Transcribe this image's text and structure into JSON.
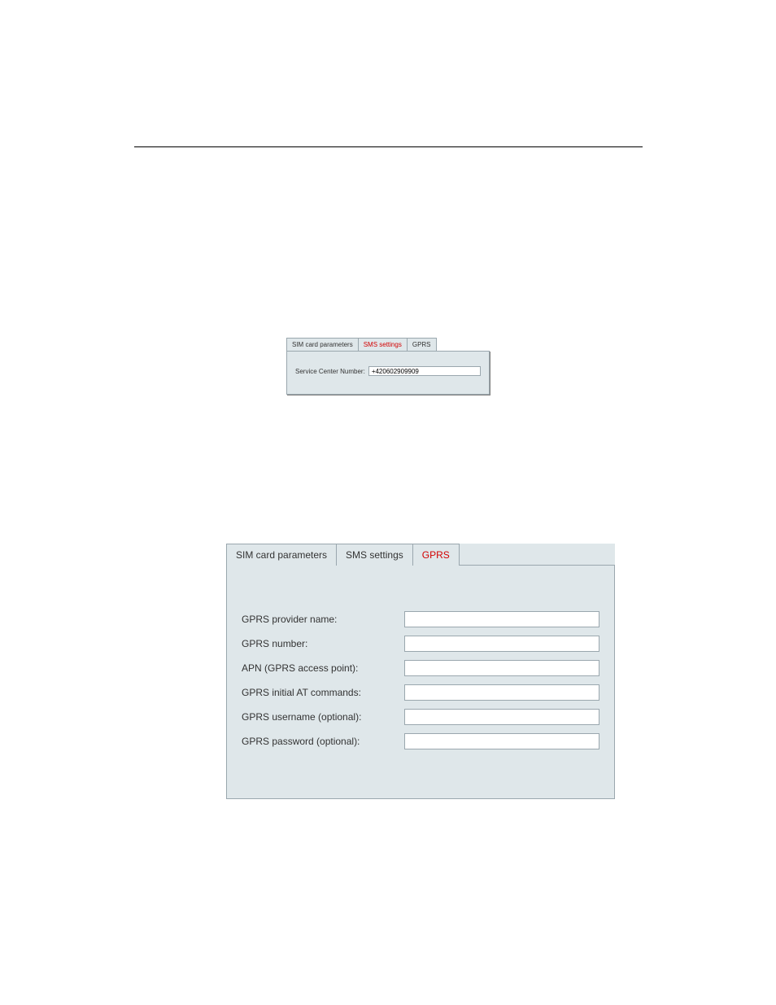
{
  "sms_panel": {
    "tabs": [
      {
        "label": "SIM card parameters",
        "active": false
      },
      {
        "label": "SMS settings",
        "active": true
      },
      {
        "label": "GPRS",
        "active": false
      }
    ],
    "field_label": "Service Center Number:",
    "field_value": "+420602909909"
  },
  "gprs_panel": {
    "tabs": [
      {
        "label": "SIM card parameters",
        "active": false
      },
      {
        "label": "SMS settings",
        "active": false
      },
      {
        "label": "GPRS",
        "active": true
      }
    ],
    "rows": [
      {
        "label": "GPRS provider name:",
        "value": ""
      },
      {
        "label": "GPRS number:",
        "value": ""
      },
      {
        "label": "APN (GPRS access point):",
        "value": ""
      },
      {
        "label": "GPRS initial AT commands:",
        "value": ""
      },
      {
        "label": "GPRS username (optional):",
        "value": ""
      },
      {
        "label": "GPRS password (optional):",
        "value": ""
      }
    ]
  },
  "colors": {
    "panel_bg": "#dfe7ea",
    "panel_border": "#9aa7ae",
    "active_tab_text": "#d30000",
    "text": "#333333",
    "page_bg": "#ffffff"
  }
}
